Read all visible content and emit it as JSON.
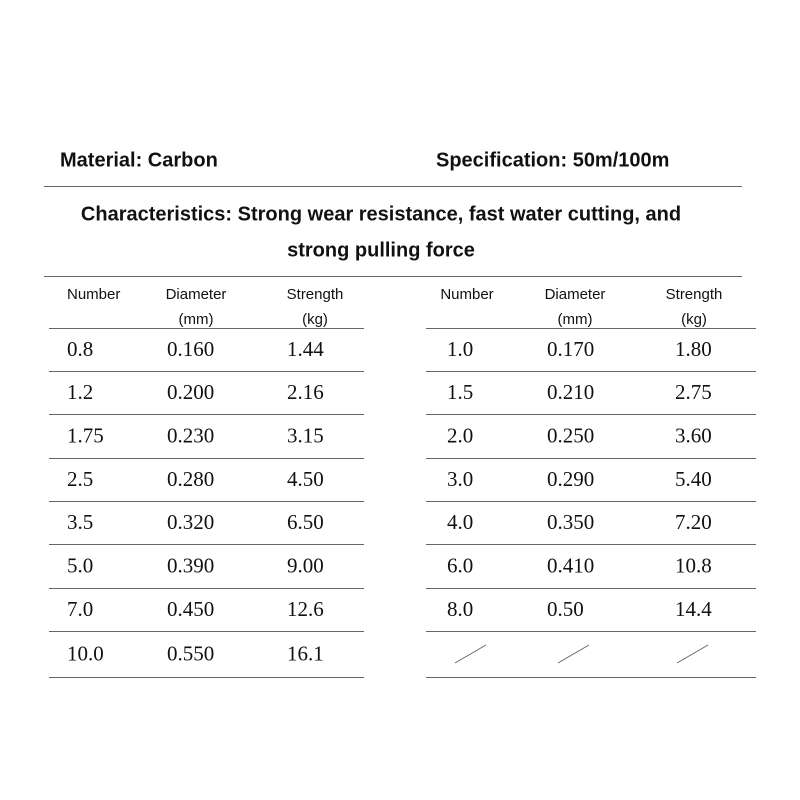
{
  "header": {
    "material": "Material: Carbon",
    "specification": "Specification: 50m/100m",
    "characteristics": [
      "Characteristics: Strong wear resistance, fast water cutting, and",
      "strong pulling force"
    ]
  },
  "tables": [
    {
      "headers": [
        [
          "Number"
        ],
        [
          "Diameter",
          "(mm)"
        ],
        [
          "Strength",
          "(kg)"
        ]
      ],
      "rows": [
        [
          "0.8",
          "0.160",
          "1.44"
        ],
        [
          "1.2",
          "0.200",
          "2.16"
        ],
        [
          "1.75",
          "0.230",
          "3.15"
        ],
        [
          "2.5",
          "0.280",
          "4.50"
        ],
        [
          "3.5",
          "0.320",
          "6.50"
        ],
        [
          "5.0",
          "0.390",
          "9.00"
        ],
        [
          "7.0",
          "0.450",
          "12.6"
        ],
        [
          "10.0",
          "0.550",
          "16.1"
        ]
      ]
    },
    {
      "headers": [
        [
          "Number"
        ],
        [
          "Diameter",
          "(mm)"
        ],
        [
          "Strength",
          "(kg)"
        ]
      ],
      "rows": [
        [
          "1.0",
          "0.170",
          "1.80"
        ],
        [
          "1.5",
          "0.210",
          "2.75"
        ],
        [
          "2.0",
          "0.250",
          "3.60"
        ],
        [
          "3.0",
          "0.290",
          "5.40"
        ],
        [
          "4.0",
          "0.350",
          "7.20"
        ],
        [
          "6.0",
          "0.410",
          "10.8"
        ],
        [
          "8.0",
          "0.50",
          "14.4"
        ]
      ]
    }
  ]
}
